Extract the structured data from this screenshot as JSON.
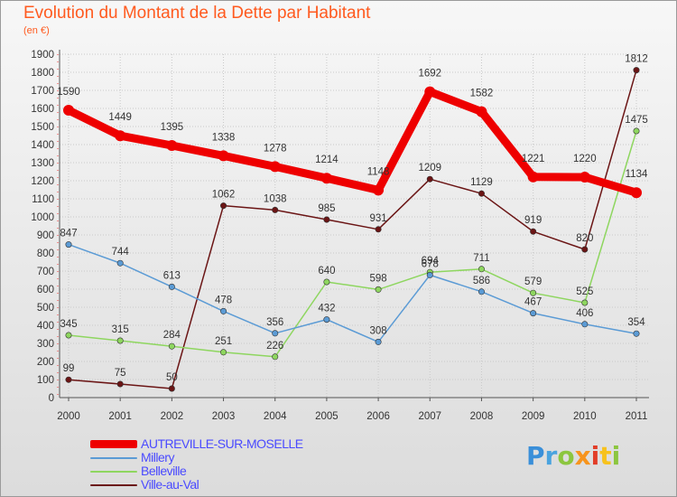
{
  "title": "Evolution du Montant de la Dette par Habitant",
  "unit_label": "(en €)",
  "brand": {
    "letters": [
      {
        "ch": "P",
        "color": "#3a8fd9"
      },
      {
        "ch": "r",
        "color": "#4aa3df"
      },
      {
        "ch": "o",
        "color": "#8cc63f"
      },
      {
        "ch": "x",
        "color": "#f7941d"
      },
      {
        "ch": "i",
        "color": "#e23d28"
      },
      {
        "ch": "t",
        "color": "#f7c21d"
      },
      {
        "ch": "i",
        "color": "#8cc63f"
      }
    ]
  },
  "chart_data": {
    "type": "line",
    "title": "Evolution du Montant de la Dette par Habitant",
    "ylabel": "(en €)",
    "xlabel": "",
    "x": [
      "2000",
      "2001",
      "2002",
      "2003",
      "2004",
      "2005",
      "2006",
      "2007",
      "2008",
      "2009",
      "2010",
      "2011"
    ],
    "ylim": [
      0,
      1900
    ],
    "yticks": [
      0,
      100,
      200,
      300,
      400,
      500,
      600,
      700,
      800,
      900,
      1000,
      1100,
      1200,
      1300,
      1400,
      1500,
      1600,
      1700,
      1800,
      1900
    ],
    "grid": true,
    "legend_position": "bottom-left",
    "series": [
      {
        "name": "Ville-au-Val",
        "color": "#6b1515",
        "values": [
          99,
          75,
          50,
          1062,
          1038,
          985,
          931,
          1209,
          1129,
          919,
          820,
          1812
        ]
      },
      {
        "name": "Belleville",
        "color": "#8ed65f",
        "values": [
          345,
          315,
          284,
          251,
          226,
          640,
          598,
          694,
          711,
          579,
          525,
          1475
        ]
      },
      {
        "name": "Millery",
        "color": "#5b9bd5",
        "values": [
          847,
          744,
          613,
          478,
          356,
          432,
          308,
          678,
          586,
          467,
          406,
          354
        ]
      },
      {
        "name": "AUTREVILLE-SUR-MOSELLE",
        "color": "#ee0000",
        "values": [
          1590,
          1449,
          1395,
          1338,
          1278,
          1214,
          1148,
          1692,
          1582,
          1221,
          1220,
          1134
        ]
      }
    ],
    "legend_order": [
      "AUTREVILLE-SUR-MOSELLE",
      "Millery",
      "Belleville",
      "Ville-au-Val"
    ]
  }
}
